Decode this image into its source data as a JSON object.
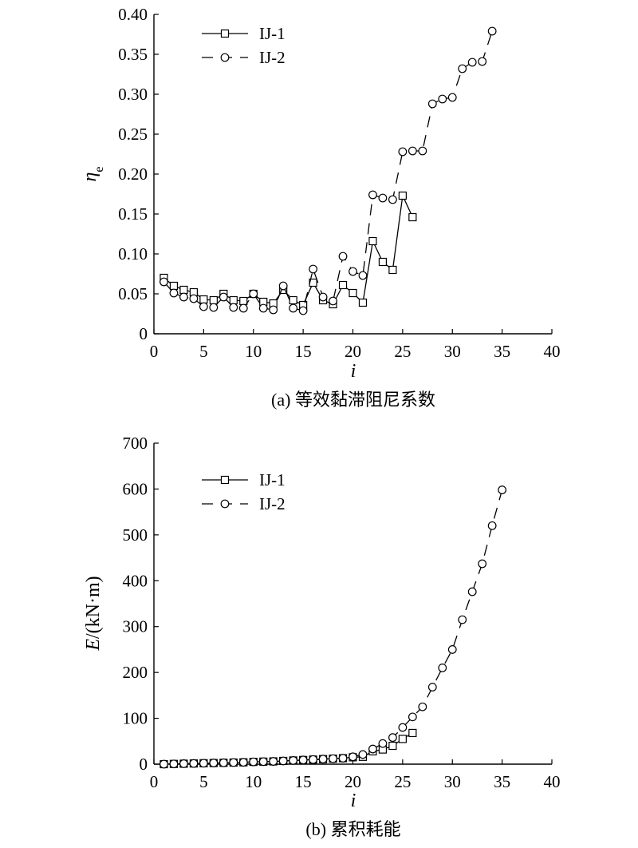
{
  "chart_data": [
    {
      "type": "line",
      "caption": "(a) 等效黏滞阻尼系数",
      "xlabel": "i",
      "ylabel_main": "η",
      "ylabel_sub": "e",
      "xlim": [
        0,
        40
      ],
      "ylim": [
        0,
        0.4
      ],
      "xticks": [
        0,
        5,
        10,
        15,
        20,
        25,
        30,
        35,
        40
      ],
      "xtick_labels": [
        "0",
        "5",
        "10",
        "15",
        "20",
        "25",
        "30",
        "35",
        "40"
      ],
      "yticks": [
        0,
        0.05,
        0.1,
        0.15,
        0.2,
        0.25,
        0.3,
        0.35,
        0.4
      ],
      "ytick_labels": [
        "0",
        "0.05",
        "0.10",
        "0.15",
        "0.20",
        "0.25",
        "0.30",
        "0.35",
        "0.40"
      ],
      "legend_position": "top-left",
      "grid": false,
      "series": [
        {
          "name": "IJ-1",
          "marker": "square",
          "line": "solid",
          "x": [
            1,
            2,
            3,
            4,
            5,
            6,
            7,
            8,
            9,
            10,
            11,
            12,
            13,
            14,
            15,
            16,
            17,
            18,
            19,
            20,
            21,
            22,
            23,
            24,
            25,
            26
          ],
          "y": [
            0.07,
            0.06,
            0.055,
            0.052,
            0.043,
            0.042,
            0.05,
            0.042,
            0.041,
            0.05,
            0.04,
            0.038,
            0.055,
            0.042,
            0.036,
            0.064,
            0.042,
            0.037,
            0.061,
            0.051,
            0.039,
            0.116,
            0.09,
            0.08,
            0.173,
            0.146
          ]
        },
        {
          "name": "IJ-2",
          "marker": "circle",
          "line": "dashed",
          "x": [
            1,
            2,
            3,
            4,
            5,
            6,
            7,
            8,
            9,
            10,
            11,
            12,
            13,
            14,
            15,
            16,
            17,
            18,
            19,
            20,
            21,
            22,
            23,
            24,
            25,
            26,
            27,
            28,
            29,
            30,
            31,
            32,
            33,
            34
          ],
          "y": [
            0.065,
            0.051,
            0.046,
            0.044,
            0.034,
            0.033,
            0.046,
            0.033,
            0.032,
            0.05,
            0.032,
            0.03,
            0.06,
            0.032,
            0.029,
            0.081,
            0.046,
            0.041,
            0.097,
            0.078,
            0.073,
            0.174,
            0.17,
            0.168,
            0.228,
            0.229,
            0.229,
            0.288,
            0.294,
            0.296,
            0.332,
            0.34,
            0.341,
            0.379
          ]
        }
      ]
    },
    {
      "type": "line",
      "caption": "(b) 累积耗能",
      "xlabel": "i",
      "ylabel_main": "E",
      "ylabel_rest": "/(kN·m)",
      "xlim": [
        0,
        40
      ],
      "ylim": [
        0,
        700
      ],
      "xticks": [
        0,
        5,
        10,
        15,
        20,
        25,
        30,
        35,
        40
      ],
      "xtick_labels": [
        "0",
        "5",
        "10",
        "15",
        "20",
        "25",
        "30",
        "35",
        "40"
      ],
      "yticks": [
        0,
        100,
        200,
        300,
        400,
        500,
        600,
        700
      ],
      "ytick_labels": [
        "0",
        "100",
        "200",
        "300",
        "400",
        "500",
        "600",
        "700"
      ],
      "legend_position": "top-left",
      "grid": false,
      "series": [
        {
          "name": "IJ-1",
          "marker": "square",
          "line": "solid",
          "x": [
            1,
            2,
            3,
            4,
            5,
            6,
            7,
            8,
            9,
            10,
            11,
            12,
            13,
            14,
            15,
            16,
            17,
            18,
            19,
            20,
            21,
            22,
            23,
            24,
            25,
            26
          ],
          "y": [
            0,
            0.5,
            1,
            1.5,
            2,
            2.5,
            3,
            3.5,
            4,
            5,
            5.5,
            6,
            7,
            8,
            9,
            10,
            11,
            12,
            13,
            15,
            16,
            28,
            32,
            40,
            55,
            68
          ]
        },
        {
          "name": "IJ-2",
          "marker": "circle",
          "line": "dashed",
          "x": [
            1,
            2,
            3,
            4,
            5,
            6,
            7,
            8,
            9,
            10,
            11,
            12,
            13,
            14,
            15,
            16,
            17,
            18,
            19,
            20,
            21,
            22,
            23,
            24,
            25,
            26,
            27,
            28,
            29,
            30,
            31,
            32,
            33,
            34,
            35
          ],
          "y": [
            0,
            0.5,
            1,
            1.5,
            2,
            2.5,
            3,
            3.5,
            4,
            5,
            5.5,
            6,
            7,
            8,
            9,
            10,
            11,
            12,
            13,
            16,
            21,
            33,
            45,
            58,
            80,
            103,
            125,
            168,
            210,
            250,
            315,
            376,
            437,
            520,
            598
          ]
        }
      ]
    }
  ]
}
